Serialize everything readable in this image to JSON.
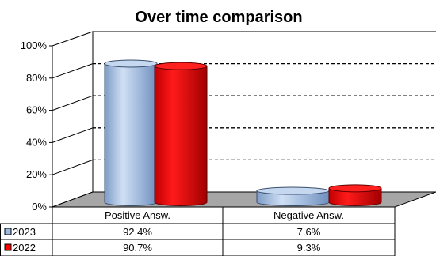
{
  "chart_data": {
    "type": "bar",
    "title": "Over time comparison",
    "categories": [
      "Positive Answ.",
      "Negative Answ."
    ],
    "y_ticks": [
      "0%",
      "20%",
      "40%",
      "60%",
      "80%",
      "100%"
    ],
    "ylim": [
      0,
      100
    ],
    "grid": true,
    "legend": "data table",
    "series": [
      {
        "name": "2023",
        "values": [
          92.4,
          7.6
        ],
        "labels": [
          "92.4%",
          "7.6%"
        ],
        "color": "#9DBCE0"
      },
      {
        "name": "2022",
        "values": [
          90.7,
          9.3
        ],
        "labels": [
          "90.7%",
          "9.3%"
        ],
        "color": "#FF0000"
      }
    ]
  }
}
